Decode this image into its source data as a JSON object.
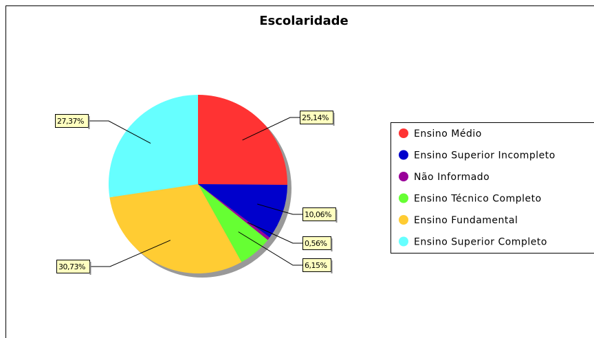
{
  "chart_data": {
    "type": "pie",
    "title": "Escolaridade",
    "categories": [
      "Ensino Médio",
      "Ensino Superior Incompleto",
      "Não Informado",
      "Ensino Técnico Completo",
      "Ensino Fundamental",
      "Ensino Superior Completo"
    ],
    "values": [
      25.14,
      10.06,
      0.56,
      6.15,
      30.73,
      27.37
    ],
    "value_labels": [
      "25,14%",
      "10,06%",
      "0,56%",
      "6,15%",
      "30,73%",
      "27,37%"
    ],
    "colors": [
      "#ff3333",
      "#0000cc",
      "#990099",
      "#66ff33",
      "#ffcc33",
      "#66ffff"
    ],
    "legend": "right"
  }
}
